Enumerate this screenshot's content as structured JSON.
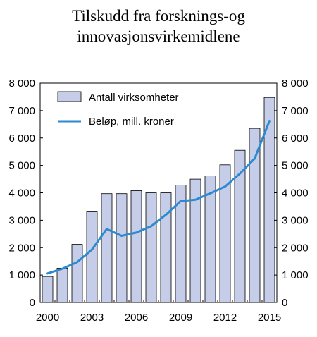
{
  "title": {
    "line1": "Tilskudd fra forsknings-og",
    "line2": "innovasjonsvirkemidlene"
  },
  "colors": {
    "bar_fill": "#c5cde8",
    "bar_stroke": "#000000",
    "line": "#2e8ad0"
  },
  "chart_data": {
    "type": "bar",
    "title": "Tilskudd fra forsknings-og innovasjonsvirkemidlene",
    "categories": [
      "2000",
      "2001",
      "2002",
      "2003",
      "2004",
      "2005",
      "2006",
      "2007",
      "2008",
      "2009",
      "2010",
      "2011",
      "2012",
      "2013",
      "2014",
      "2015"
    ],
    "x_tick_labels": [
      "2000",
      "2003",
      "2006",
      "2009",
      "2012",
      "2015"
    ],
    "y_tick_labels": [
      "0",
      "1 000",
      "2 000",
      "3 000",
      "4 000",
      "5 000",
      "6 000",
      "7 000",
      "8 000"
    ],
    "ylim": [
      0,
      8000
    ],
    "grid": false,
    "legend_position": "top-left",
    "series": [
      {
        "name": "Antall virksomheter",
        "type": "bar",
        "values": [
          950,
          1250,
          2120,
          3330,
          3970,
          3970,
          4080,
          4000,
          4000,
          4280,
          4500,
          4620,
          5020,
          5550,
          6350,
          7480
        ]
      },
      {
        "name": "Beløp, mill. kroner",
        "type": "line",
        "values": [
          1060,
          1230,
          1470,
          1930,
          2680,
          2430,
          2550,
          2780,
          3200,
          3700,
          3750,
          3980,
          4230,
          4700,
          5250,
          6620
        ]
      }
    ]
  }
}
